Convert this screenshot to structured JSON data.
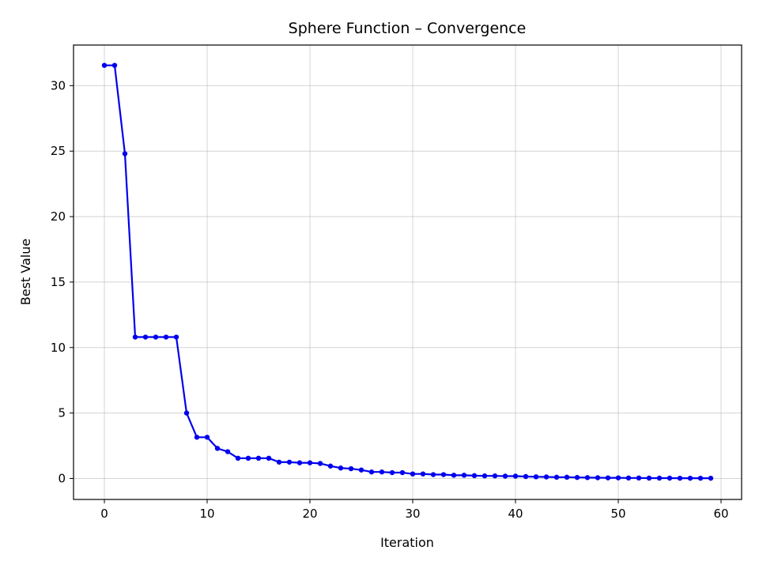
{
  "chart_data": {
    "type": "line",
    "title": "Sphere Function – Convergence",
    "xlabel": "Iteration",
    "ylabel": "Best Value",
    "xlim": [
      -3,
      62
    ],
    "ylim": [
      -1.6,
      33.1
    ],
    "xticks": [
      0,
      10,
      20,
      30,
      40,
      50,
      60
    ],
    "yticks": [
      0,
      5,
      10,
      15,
      20,
      25,
      30
    ],
    "grid": true,
    "line_color": "#0000ee",
    "series": [
      {
        "x": [
          0,
          1,
          2,
          3,
          4,
          5,
          6,
          7,
          8,
          9,
          10,
          11,
          12,
          13,
          14,
          15,
          16,
          17,
          18,
          19,
          20,
          21,
          22,
          23,
          24,
          25,
          26,
          27,
          28,
          29,
          30,
          31,
          32,
          33,
          34,
          35,
          36,
          37,
          38,
          39,
          40,
          41,
          42,
          43,
          44,
          45,
          46,
          47,
          48,
          49,
          50,
          51,
          52,
          53,
          54,
          55,
          56,
          57,
          58,
          59
        ],
        "values": [
          31.55,
          31.55,
          24.8,
          10.8,
          10.8,
          10.8,
          10.8,
          10.8,
          5.0,
          3.15,
          3.15,
          2.3,
          2.05,
          1.55,
          1.55,
          1.55,
          1.55,
          1.25,
          1.25,
          1.2,
          1.2,
          1.15,
          0.95,
          0.8,
          0.75,
          0.65,
          0.5,
          0.5,
          0.45,
          0.45,
          0.35,
          0.35,
          0.3,
          0.3,
          0.25,
          0.25,
          0.22,
          0.2,
          0.2,
          0.18,
          0.18,
          0.15,
          0.13,
          0.12,
          0.1,
          0.1,
          0.08,
          0.07,
          0.06,
          0.05,
          0.05,
          0.04,
          0.04,
          0.03,
          0.03,
          0.03,
          0.02,
          0.02,
          0.02,
          0.02
        ]
      }
    ]
  }
}
